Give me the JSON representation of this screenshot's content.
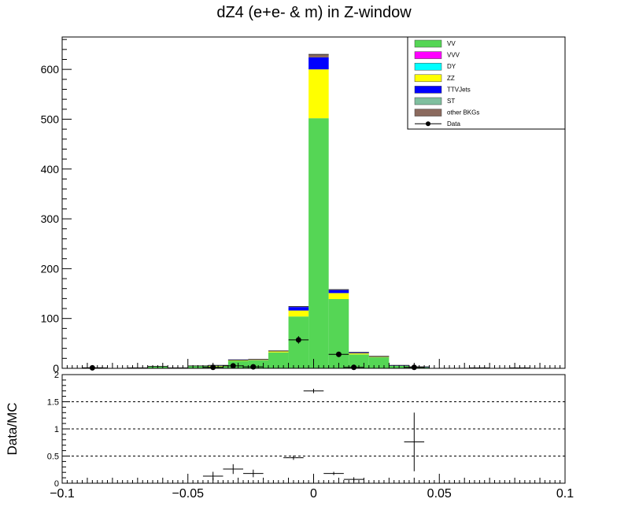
{
  "chart_data": [
    {
      "type": "bar",
      "stacked": true,
      "title": "dZ4 (e+e- & m) in Z-window",
      "xlabel": "",
      "ylabel": "",
      "xlim": [
        -0.1,
        0.1
      ],
      "ylim": [
        0,
        665
      ],
      "bin_edges": [
        -0.09,
        -0.082,
        -0.074,
        -0.066,
        -0.058,
        -0.05,
        -0.042,
        -0.034,
        -0.026,
        -0.018,
        -0.01,
        -0.002,
        0.006,
        0.014,
        0.022,
        0.03,
        0.038,
        0.046,
        0.054,
        0.062,
        0.07,
        0.078,
        0.086
      ],
      "yticks": [
        0,
        100,
        200,
        300,
        400,
        500,
        600
      ],
      "xticks": [
        -0.1,
        -0.05,
        0,
        0.05,
        0.1
      ],
      "xtick_labels": [
        "−0.1",
        "−0.05",
        "0",
        "0.05",
        "0.1"
      ],
      "series": [
        {
          "name": "VV",
          "color": "#55d655",
          "values": [
            1,
            0,
            1,
            4,
            1,
            5,
            4,
            15,
            16,
            32,
            104,
            502,
            139,
            28,
            22,
            5,
            2,
            0,
            0,
            1,
            0,
            1
          ]
        },
        {
          "name": "VVV",
          "color": "#ff00ff",
          "values": [
            0,
            0,
            0,
            0,
            0,
            0,
            0,
            0,
            0,
            0,
            0,
            0,
            0,
            0,
            0,
            0,
            0,
            0,
            0,
            0,
            0,
            0
          ]
        },
        {
          "name": "DY",
          "color": "#00ffff",
          "values": [
            0,
            0,
            0,
            0,
            0,
            0,
            0,
            0,
            0,
            0,
            0,
            0,
            0,
            0,
            0,
            0,
            0,
            0,
            0,
            0,
            0,
            0
          ]
        },
        {
          "name": "ZZ",
          "color": "#ffff00",
          "values": [
            0,
            0,
            0,
            0,
            0,
            0,
            1,
            1,
            1,
            2,
            12,
            98,
            12,
            2,
            1,
            0,
            0,
            0,
            0,
            0,
            0,
            0
          ]
        },
        {
          "name": "TTVJets",
          "color": "#0000ff",
          "values": [
            0,
            0,
            0,
            0,
            0,
            0,
            1,
            1,
            1,
            1,
            7,
            24,
            6,
            1,
            1,
            1,
            1,
            0,
            0,
            0,
            0,
            0
          ]
        },
        {
          "name": "ST",
          "color": "#7fbf9f",
          "values": [
            0,
            0,
            0,
            0,
            0,
            0,
            0,
            0,
            0,
            0,
            0,
            0,
            0,
            0,
            0,
            0,
            0,
            0,
            0,
            0,
            0,
            0
          ]
        },
        {
          "name": "other BKGs",
          "color": "#8b6a5e",
          "values": [
            0,
            0,
            0,
            0,
            0,
            0,
            0,
            0,
            0,
            0,
            1,
            6,
            1,
            1,
            0,
            0,
            0,
            0,
            0,
            0,
            0,
            0
          ]
        }
      ],
      "data_points": {
        "name": "Data",
        "x": [
          -0.088,
          -0.04,
          -0.032,
          -0.024,
          -0.006,
          0.01,
          0.016,
          0.04
        ],
        "y": [
          1,
          2,
          5,
          3,
          57,
          28,
          2,
          2
        ]
      },
      "legend": {
        "placement": "top-right",
        "entries": [
          "VV",
          "VVV",
          "DY",
          "ZZ",
          "TTVJets",
          "ST",
          "other BKGs",
          "Data"
        ]
      }
    },
    {
      "type": "scatter",
      "ylabel": "Data/MC",
      "xlim": [
        -0.1,
        0.1
      ],
      "ylim": [
        0,
        2
      ],
      "yticks": [
        0,
        0.5,
        1,
        1.5,
        2
      ],
      "ytick_labels": [
        "0",
        "0.5",
        "1",
        "1.5",
        "2"
      ],
      "reference_lines": [
        0.5,
        1,
        1.5
      ],
      "points": [
        {
          "x": -0.04,
          "y": 0.13,
          "xerr": 0.004,
          "yerr": 0.08
        },
        {
          "x": -0.032,
          "y": 0.26,
          "xerr": 0.004,
          "yerr": 0.09
        },
        {
          "x": -0.024,
          "y": 0.18,
          "xerr": 0.004,
          "yerr": 0.07
        },
        {
          "x": -0.008,
          "y": 0.47,
          "xerr": 0.004,
          "yerr": 0.04
        },
        {
          "x": 0,
          "y": 1.7,
          "xerr": 0.004,
          "yerr": 0.04
        },
        {
          "x": 0.008,
          "y": 0.18,
          "xerr": 0.004,
          "yerr": 0.03
        },
        {
          "x": 0.016,
          "y": 0.07,
          "xerr": 0.004,
          "yerr": 0.04
        },
        {
          "x": 0.04,
          "y": 0.76,
          "xerr": 0.004,
          "yerr": 0.54
        }
      ]
    }
  ]
}
